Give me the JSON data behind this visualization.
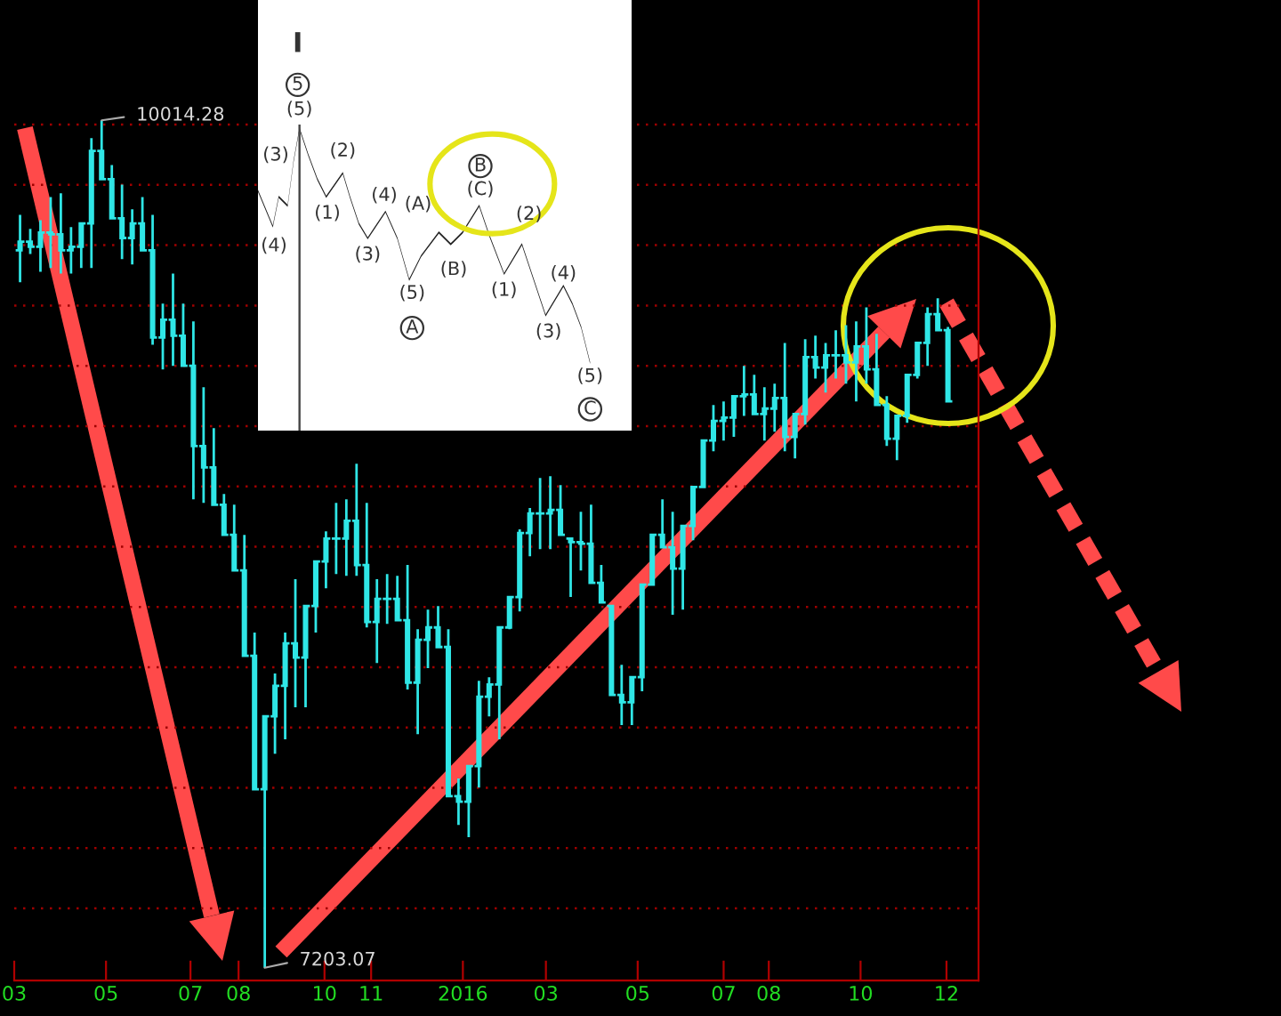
{
  "chart_data": {
    "type": "candlestick",
    "color": "#2fe6e6",
    "grid": "y",
    "tick_labels": "x",
    "xlim": [
      "2015-03-02",
      "2016-12-23"
    ],
    "yticks": [
      {
        "value": 7400,
        "label": null
      },
      {
        "value": 7600,
        "label": null
      },
      {
        "value": 7800,
        "label": null
      },
      {
        "value": 8000,
        "label": null
      },
      {
        "value": 8200,
        "label": null
      },
      {
        "value": 8400,
        "label": null
      },
      {
        "value": 8600,
        "label": null
      },
      {
        "value": 8800,
        "label": null
      },
      {
        "value": 9000,
        "label": null
      },
      {
        "value": 9200,
        "label": null
      },
      {
        "value": 9400,
        "label": null
      },
      {
        "value": 9600,
        "label": null
      },
      {
        "value": 9800,
        "label": null
      },
      {
        "value": 10000,
        "label": null
      }
    ],
    "xticks": [
      {
        "value": "2015-03-02",
        "label": "03"
      },
      {
        "value": "2015-05-04",
        "label": "05"
      },
      {
        "value": "2015-07-01",
        "label": "07"
      },
      {
        "value": "2015-08-03",
        "label": "08"
      },
      {
        "value": "2015-10-01",
        "label": "10"
      },
      {
        "value": "2015-11-02",
        "label": "11"
      },
      {
        "value": "2016-01-04",
        "label": "2016"
      },
      {
        "value": "2016-03-01",
        "label": "03"
      },
      {
        "value": "2016-05-03",
        "label": "05"
      },
      {
        "value": "2016-07-01",
        "label": "07"
      },
      {
        "value": "2016-08-01",
        "label": "08"
      },
      {
        "value": "2016-10-03",
        "label": "10"
      },
      {
        "value": "2016-12-01",
        "label": "12"
      }
    ],
    "x": [
      "2015-03-06",
      "2015-03-13",
      "2015-03-20",
      "2015-03-27",
      "2015-04-03",
      "2015-04-10",
      "2015-04-17",
      "2015-04-24",
      "2015-05-01",
      "2015-05-08",
      "2015-05-15",
      "2015-05-22",
      "2015-05-29",
      "2015-06-05",
      "2015-06-12",
      "2015-06-19",
      "2015-06-26",
      "2015-07-03",
      "2015-07-10",
      "2015-07-17",
      "2015-07-24",
      "2015-07-31",
      "2015-08-07",
      "2015-08-14",
      "2015-08-21",
      "2015-08-28",
      "2015-09-04",
      "2015-09-11",
      "2015-09-18",
      "2015-09-25",
      "2015-10-02",
      "2015-10-09",
      "2015-10-16",
      "2015-10-23",
      "2015-10-30",
      "2015-11-06",
      "2015-11-13",
      "2015-11-20",
      "2015-11-27",
      "2015-12-04",
      "2015-12-11",
      "2015-12-18",
      "2015-12-25",
      "2016-01-01",
      "2016-01-08",
      "2016-01-15",
      "2016-01-22",
      "2016-01-29",
      "2016-02-05",
      "2016-02-12",
      "2016-02-19",
      "2016-02-26",
      "2016-03-04",
      "2016-03-11",
      "2016-03-18",
      "2016-03-25",
      "2016-04-01",
      "2016-04-08",
      "2016-04-15",
      "2016-04-22",
      "2016-04-29",
      "2016-05-06",
      "2016-05-13",
      "2016-05-20",
      "2016-05-27",
      "2016-06-03",
      "2016-06-10",
      "2016-06-17",
      "2016-06-24",
      "2016-07-01",
      "2016-07-08",
      "2016-07-15",
      "2016-07-22",
      "2016-07-29",
      "2016-08-05",
      "2016-08-12",
      "2016-08-19",
      "2016-08-26",
      "2016-09-02",
      "2016-09-09",
      "2016-09-16",
      "2016-09-23",
      "2016-09-30",
      "2016-10-07",
      "2016-10-14",
      "2016-10-21",
      "2016-10-28",
      "2016-11-04",
      "2016-11-11",
      "2016-11-18",
      "2016-11-25",
      "2016-12-02"
    ],
    "ohlc": [
      [
        9583,
        9701,
        9477,
        9612
      ],
      [
        9612,
        9654,
        9571,
        9595
      ],
      [
        9595,
        9683,
        9512,
        9642
      ],
      [
        9642,
        9760,
        9524,
        9636
      ],
      [
        9636,
        9772,
        9506,
        9583
      ],
      [
        9583,
        9660,
        9506,
        9595
      ],
      [
        9595,
        9672,
        9524,
        9672
      ],
      [
        9672,
        9955,
        9524,
        9913
      ],
      [
        9913,
        10014.28,
        9819,
        9819
      ],
      [
        9819,
        9866,
        9689,
        9689
      ],
      [
        9689,
        9801,
        9554,
        9624
      ],
      [
        9624,
        9719,
        9536,
        9672
      ],
      [
        9672,
        9760,
        9583,
        9583
      ],
      [
        9583,
        9701,
        9270,
        9294
      ],
      [
        9294,
        9406,
        9188,
        9353
      ],
      [
        9353,
        9506,
        9200,
        9300
      ],
      [
        9300,
        9406,
        9200,
        9200
      ],
      [
        9200,
        9347,
        8757,
        8934
      ],
      [
        8934,
        9129,
        8745,
        8863
      ],
      [
        8863,
        8993,
        8739,
        8739
      ],
      [
        8739,
        8775,
        8639,
        8639
      ],
      [
        8639,
        8739,
        8521,
        8521
      ],
      [
        8521,
        8639,
        8238,
        8238
      ],
      [
        8238,
        8315,
        7795,
        7795
      ],
      [
        7795,
        8037,
        7203.07,
        8037
      ],
      [
        8037,
        8179,
        7913,
        8138
      ],
      [
        8138,
        8315,
        7961,
        8279
      ],
      [
        8279,
        8492,
        8067,
        8232
      ],
      [
        8232,
        8403,
        8067,
        8403
      ],
      [
        8403,
        8551,
        8315,
        8551
      ],
      [
        8551,
        8651,
        8462,
        8627
      ],
      [
        8627,
        8745,
        8509,
        8627
      ],
      [
        8627,
        8757,
        8503,
        8686
      ],
      [
        8686,
        8875,
        8503,
        8539
      ],
      [
        8539,
        8745,
        8332,
        8350
      ],
      [
        8350,
        8492,
        8214,
        8427
      ],
      [
        8427,
        8509,
        8344,
        8427
      ],
      [
        8427,
        8503,
        8356,
        8356
      ],
      [
        8356,
        8539,
        8126,
        8149
      ],
      [
        8149,
        8326,
        7978,
        8291
      ],
      [
        8291,
        8391,
        8197,
        8332
      ],
      [
        8332,
        8403,
        8267,
        8267
      ],
      [
        8267,
        8326,
        7772,
        7772
      ],
      [
        7772,
        7831,
        7677,
        7754
      ],
      [
        7754,
        7872,
        7636,
        7872
      ],
      [
        7872,
        8155,
        7801,
        8102
      ],
      [
        8102,
        8167,
        8037,
        8143
      ],
      [
        8143,
        8332,
        7961,
        8332
      ],
      [
        8332,
        8433,
        8326,
        8433
      ],
      [
        8433,
        8657,
        8385,
        8645
      ],
      [
        8645,
        8728,
        8568,
        8710
      ],
      [
        8710,
        8828,
        8592,
        8710
      ],
      [
        8710,
        8834,
        8592,
        8722
      ],
      [
        8722,
        8804,
        8639,
        8639
      ],
      [
        8627,
        8627,
        8433,
        8615
      ],
      [
        8615,
        8716,
        8521,
        8610
      ],
      [
        8610,
        8739,
        8480,
        8480
      ],
      [
        8480,
        8539,
        8415,
        8415
      ],
      [
        8403,
        8403,
        8108,
        8108
      ],
      [
        8108,
        8208,
        8008,
        8084
      ],
      [
        8084,
        8167,
        8008,
        8167
      ],
      [
        8167,
        8474,
        8120,
        8474
      ],
      [
        8474,
        8639,
        8474,
        8639
      ],
      [
        8639,
        8757,
        8598,
        8598
      ],
      [
        8598,
        8716,
        8374,
        8527
      ],
      [
        8527,
        8669,
        8391,
        8669
      ],
      [
        8669,
        8798,
        8621,
        8798
      ],
      [
        8798,
        8952,
        8798,
        8952
      ],
      [
        8952,
        9070,
        8916,
        9017
      ],
      [
        9017,
        9082,
        8952,
        9028
      ],
      [
        9028,
        9099,
        8964,
        9099
      ],
      [
        9099,
        9200,
        9034,
        9105
      ],
      [
        9105,
        9170,
        9040,
        9040
      ],
      [
        9040,
        9129,
        8952,
        9058
      ],
      [
        9058,
        9141,
        8981,
        9093
      ],
      [
        9093,
        9276,
        8916,
        8964
      ],
      [
        8964,
        9040,
        8893,
        9040
      ],
      [
        9040,
        9288,
        9005,
        9229
      ],
      [
        9229,
        9300,
        9158,
        9194
      ],
      [
        9194,
        9276,
        9111,
        9235
      ],
      [
        9235,
        9318,
        9158,
        9235
      ],
      [
        9235,
        9335,
        9141,
        9211
      ],
      [
        9211,
        9347,
        9082,
        9264
      ],
      [
        9264,
        9394,
        9141,
        9188
      ],
      [
        9188,
        9306,
        9070,
        9070
      ],
      [
        9070,
        9099,
        8934,
        8958
      ],
      [
        8958,
        9034,
        8887,
        9034
      ],
      [
        9034,
        9170,
        9011,
        9170
      ],
      [
        9170,
        9276,
        9158,
        9276
      ],
      [
        9276,
        9394,
        9200,
        9371
      ],
      [
        9371,
        9424,
        9318,
        9318
      ],
      [
        9318,
        9329,
        9082,
        9082
      ]
    ],
    "annotations": [
      {
        "text": "10014.28",
        "x": "2015-05-01",
        "y": 10014.28
      },
      {
        "text": "7203.07",
        "x": "2015-08-21",
        "y": 7203.07
      },
      "I",
      "5",
      "(5)",
      "(2)",
      "(1)",
      "(4)",
      "(3)",
      "(5)",
      "A",
      "(3)",
      "(4)",
      "(A)",
      "(B)",
      "B",
      "(C)",
      "(2)",
      "(1)",
      "(4)",
      "(3)",
      "(5)",
      "C"
    ]
  }
}
